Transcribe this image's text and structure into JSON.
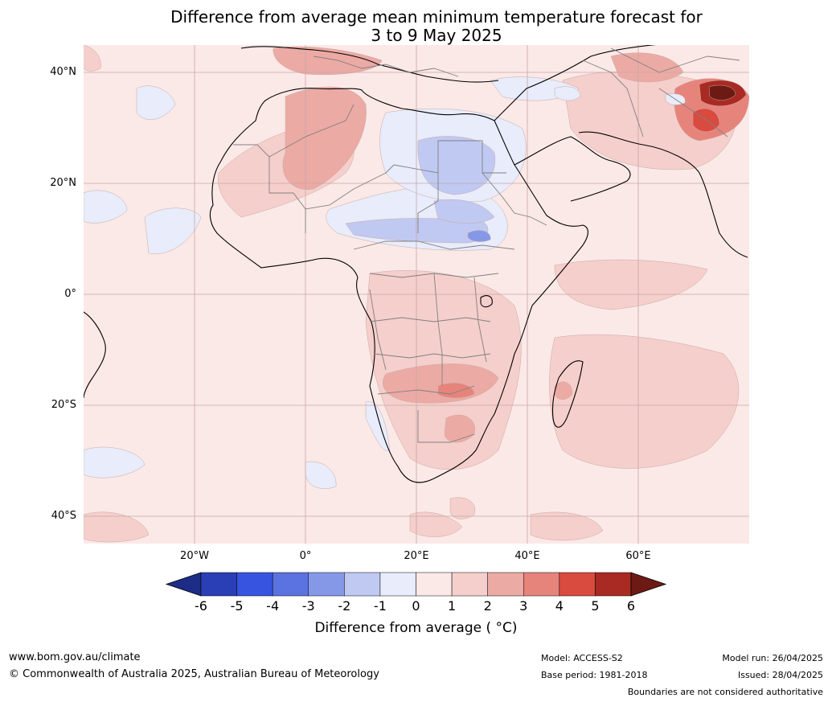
{
  "title": {
    "line1": "Difference from average mean minimum temperature forecast for",
    "line2": "3 to 9 May 2025"
  },
  "map": {
    "lat_labels": [
      "40°N",
      "20°N",
      "0°",
      "20°S",
      "40°S"
    ],
    "lon_labels": [
      "20°W",
      "0°",
      "20°E",
      "40°E",
      "60°E"
    ]
  },
  "colorbar": {
    "ticks": [
      "-6",
      "-5",
      "-4",
      "-3",
      "-2",
      "-1",
      "0",
      "1",
      "2",
      "3",
      "4",
      "5",
      "6"
    ],
    "colors": [
      "#1d2c86",
      "#2a3fb5",
      "#3654e0",
      "#5b73e0",
      "#8598e8",
      "#c0c9f2",
      "#e8ecfb",
      "#fbe9e7",
      "#f5cfcb",
      "#ecaaa5",
      "#e6847c",
      "#d94a3f",
      "#a92a22",
      "#6d1a15"
    ],
    "label": "Difference from average ( °C)"
  },
  "footer": {
    "url": "www.bom.gov.au/climate",
    "copyright": "© Commonwealth of Australia 2025, Australian Bureau of Meteorology",
    "model": "Model: ACCESS-S2",
    "base_period": "Base period: 1981-2018",
    "model_run": "Model run: 26/04/2025",
    "issued": "Issued: 28/04/2025",
    "disclaimer": "Boundaries are not considered authoritative"
  }
}
